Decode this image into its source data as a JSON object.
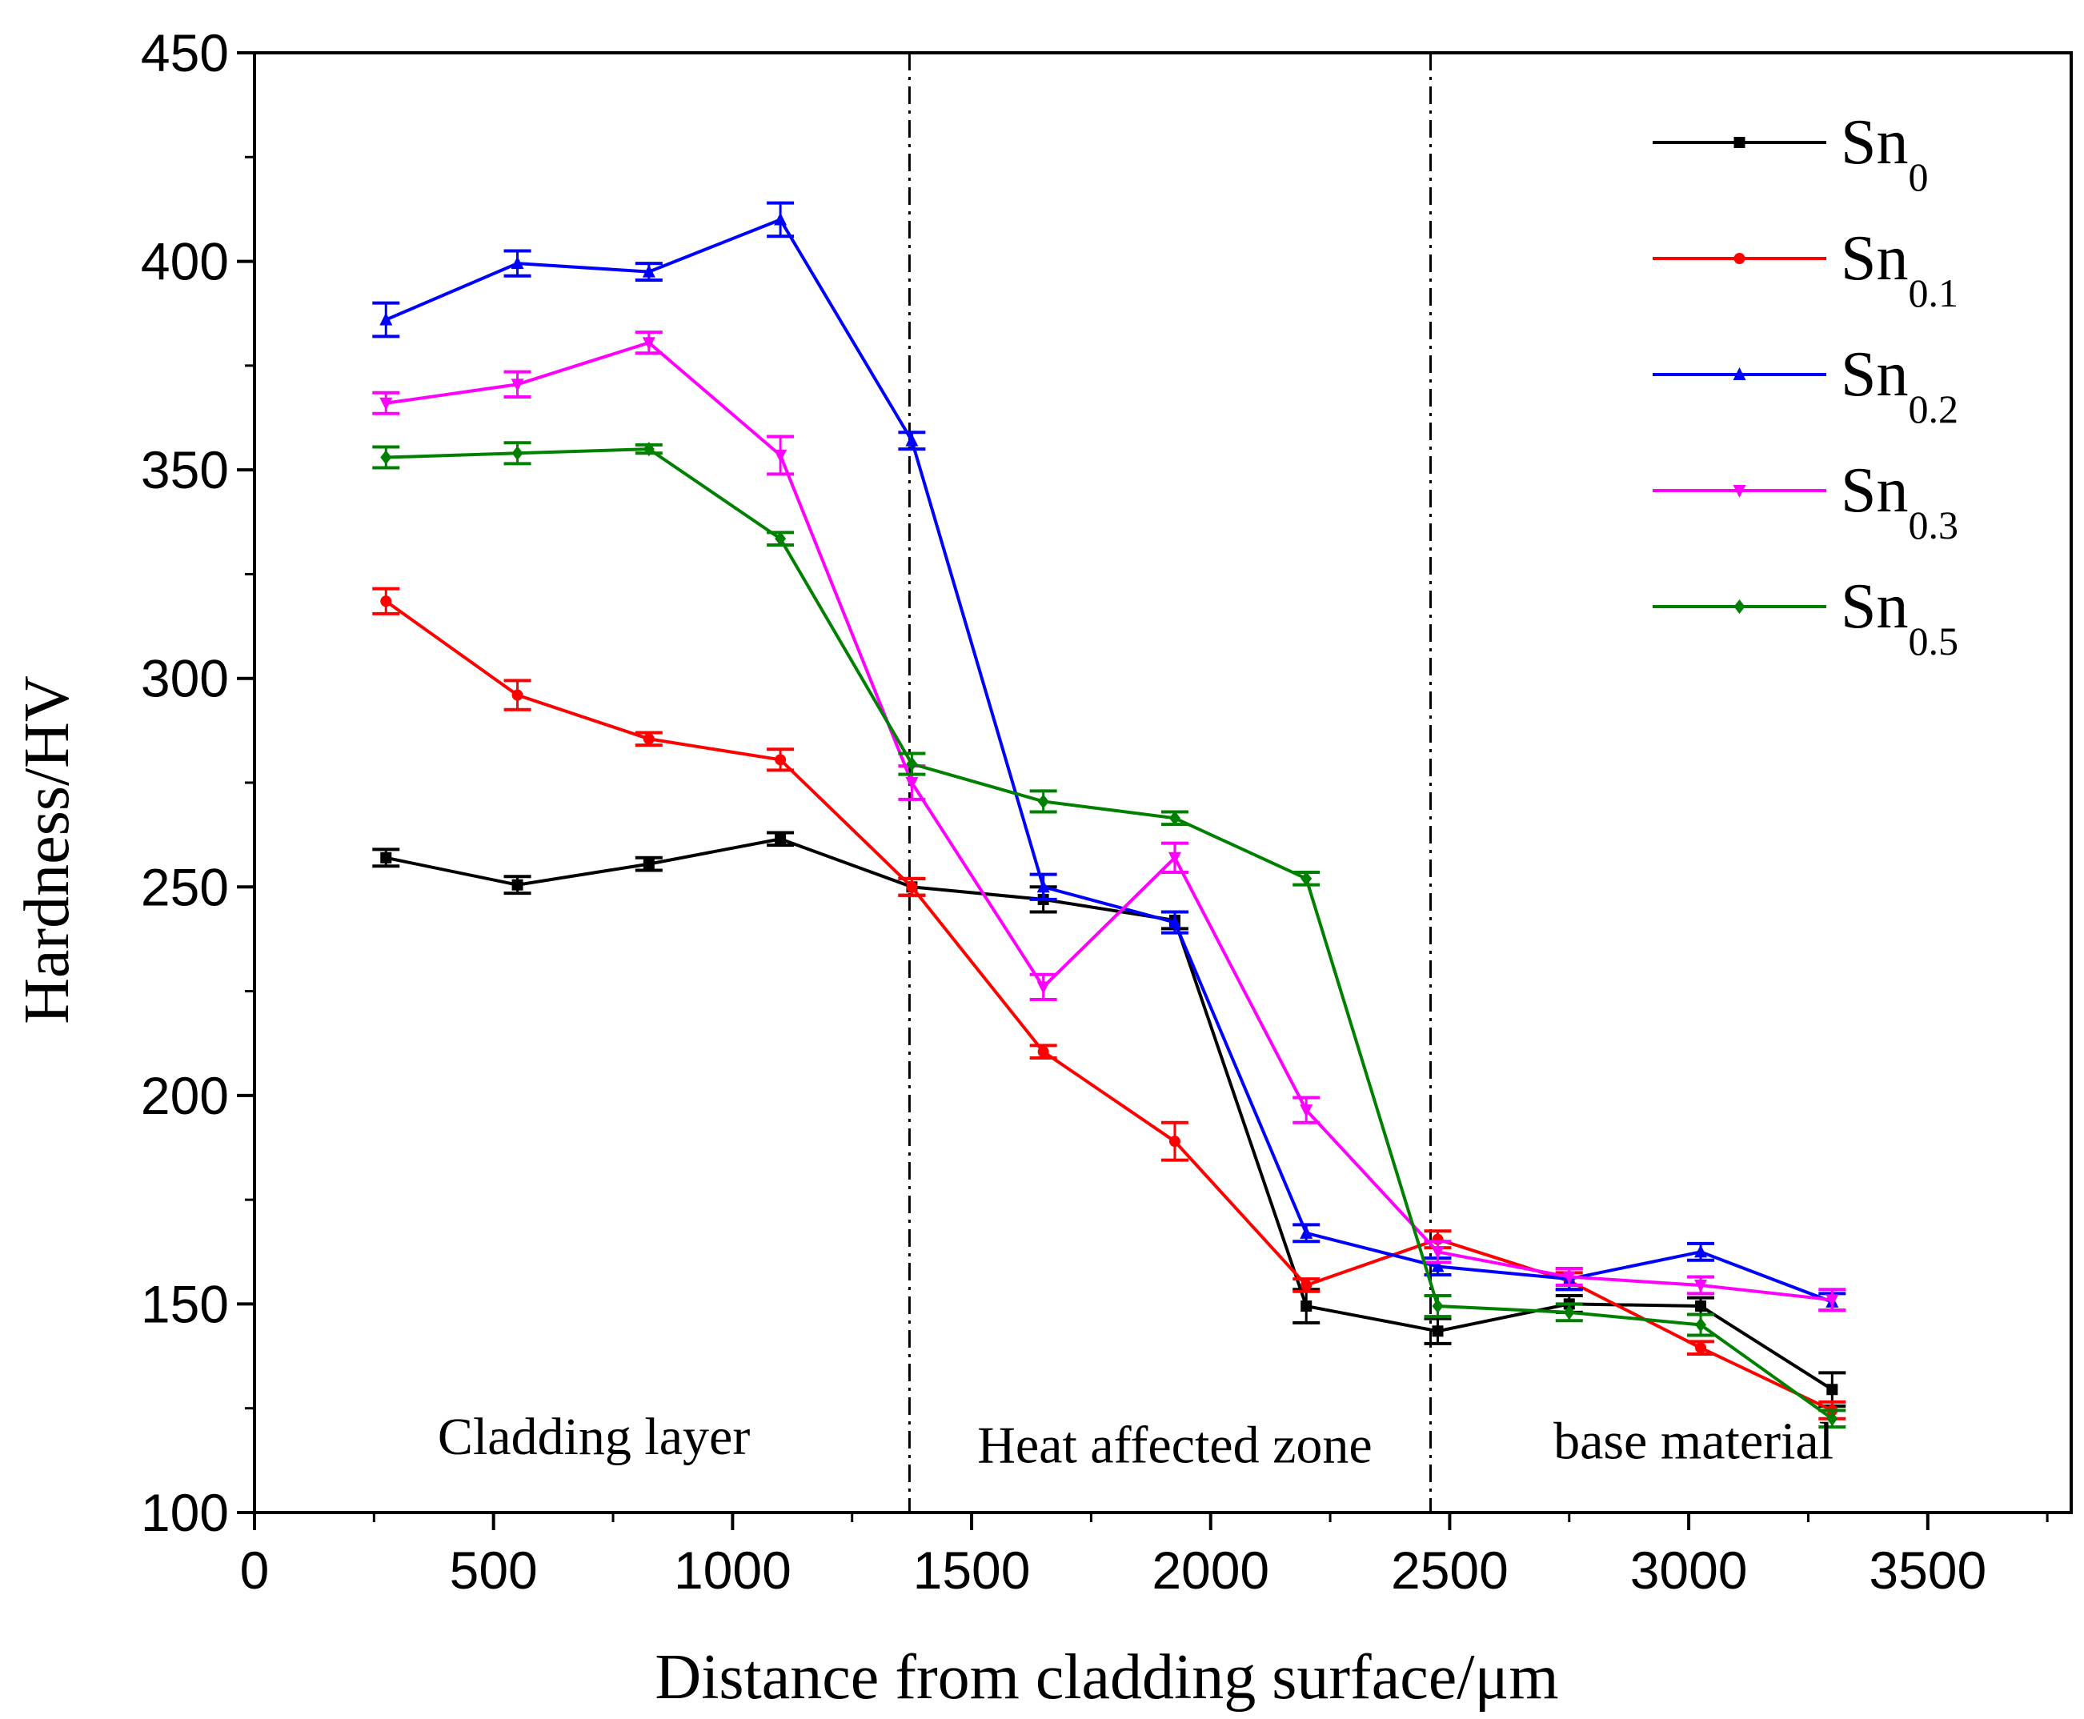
{
  "chart_data": {
    "type": "line",
    "title": "",
    "xlabel": "Distance from cladding surface/μm",
    "ylabel": "Hardness/HV",
    "xlim": [
      0,
      3800
    ],
    "ylim": [
      100,
      450
    ],
    "xticks": [
      0,
      500,
      1000,
      1500,
      2000,
      2500,
      3000,
      3500
    ],
    "yticks": [
      100,
      150,
      200,
      250,
      300,
      350,
      400,
      450
    ],
    "x": [
      275,
      550,
      825,
      1100,
      1375,
      1650,
      1925,
      2200,
      2475,
      2750,
      3025,
      3300
    ],
    "series": [
      {
        "name": "Sn0",
        "base": "Sn",
        "sub": "0",
        "color": "#000000",
        "marker": "square",
        "values": [
          257,
          250.5,
          255.5,
          261.5,
          250,
          247,
          242,
          149.5,
          143.5,
          150,
          149.5,
          129.5
        ],
        "errors": [
          2,
          2,
          1.5,
          1.5,
          2,
          3,
          2,
          4,
          3,
          2,
          2,
          4
        ]
      },
      {
        "name": "Sn0.1",
        "base": "Sn",
        "sub": "0.1",
        "color": "#ff0000",
        "marker": "circle",
        "values": [
          318.5,
          296,
          285.5,
          280.5,
          250,
          210.5,
          189,
          154.5,
          165.5,
          155.5,
          139.5,
          124.5
        ],
        "errors": [
          3,
          3.5,
          1.5,
          2.5,
          2,
          1.5,
          4.5,
          1.5,
          2,
          2,
          1.5,
          2
        ]
      },
      {
        "name": "Sn0.2",
        "base": "Sn",
        "sub": "0.2",
        "color": "#0000ff",
        "marker": "triangle-up",
        "values": [
          386,
          399.5,
          397.5,
          410,
          357,
          250,
          241.5,
          167,
          159,
          156,
          162.5,
          150.5
        ],
        "errors": [
          4,
          3,
          2,
          4,
          2,
          3,
          2.5,
          2,
          2,
          2.5,
          2,
          2
        ]
      },
      {
        "name": "Sn0.3",
        "base": "Sn",
        "sub": "0.3",
        "color": "#ff00ff",
        "marker": "triangle-down",
        "values": [
          366,
          370.5,
          380.5,
          353.5,
          275,
          226,
          257,
          196.5,
          162.5,
          156.5,
          154.5,
          151
        ],
        "errors": [
          2.5,
          3,
          2.5,
          4.5,
          4,
          3,
          3.5,
          3,
          2.5,
          2,
          2,
          2.5
        ]
      },
      {
        "name": "Sn0.5",
        "base": "Sn",
        "sub": "0.5",
        "color": "#008000",
        "marker": "diamond",
        "values": [
          353,
          354,
          355,
          333.5,
          279.5,
          270.5,
          266.5,
          252,
          149.5,
          148,
          145,
          122.5
        ],
        "errors": [
          2.5,
          2.5,
          1,
          1.5,
          2.5,
          2.5,
          1.5,
          1.5,
          2.5,
          2,
          2.5,
          2
        ]
      }
    ],
    "boundaries": [
      1370,
      2460
    ],
    "regions": [
      {
        "label": "Cladding layer",
        "x_center": 710,
        "y": 114
      },
      {
        "label": "Heat affected zone",
        "x_center": 1925,
        "y": 112
      },
      {
        "label": "base material",
        "x_center": 3010,
        "y": 113
      }
    ],
    "legend_position": "top-right"
  }
}
